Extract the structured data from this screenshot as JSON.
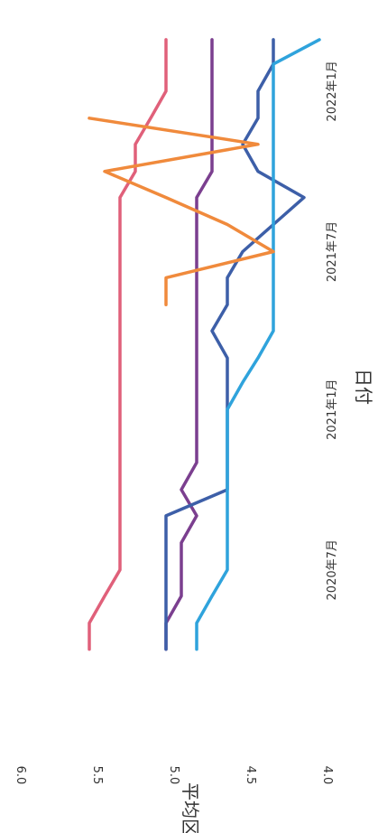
{
  "chart_data": {
    "type": "line",
    "xlabel": "日付",
    "ylabel": "平均区分",
    "x_ticks": [
      "2020年7月",
      "2021年1月",
      "2021年7月",
      "2022年1月"
    ],
    "y_ticks": [
      "4.0",
      "4.5",
      "5.0",
      "5.5",
      "6.0"
    ],
    "ylim": [
      4.0,
      6.0
    ],
    "xlim": [
      "2020-03-15",
      "2022-04-01"
    ],
    "grid": false,
    "legend": "none",
    "x": [
      "2020-04",
      "2020-05",
      "2020-06",
      "2020-07",
      "2020-08",
      "2020-09",
      "2020-10",
      "2020-11",
      "2020-12",
      "2021-01",
      "2021-02",
      "2021-03",
      "2021-04",
      "2021-05",
      "2021-06",
      "2021-07",
      "2021-08",
      "2021-09",
      "2021-10",
      "2021-11",
      "2021-12",
      "2022-01",
      "2022-02",
      "2022-03"
    ],
    "series": [
      {
        "color": "#e0607a",
        "values": [
          5.5,
          5.5,
          5.4,
          5.3,
          5.3,
          5.3,
          5.3,
          5.3,
          5.3,
          5.3,
          5.3,
          5.3,
          5.3,
          5.3,
          5.3,
          5.3,
          5.3,
          5.3,
          5.2,
          5.2,
          5.1,
          5.0,
          5.0,
          5.0
        ]
      },
      {
        "color": "#7b3f8f",
        "values": [
          5.0,
          5.0,
          4.9,
          4.9,
          4.9,
          4.8,
          4.9,
          4.8,
          4.8,
          4.8,
          4.8,
          4.8,
          4.8,
          4.8,
          4.8,
          4.8,
          4.8,
          4.8,
          4.7,
          4.7,
          4.7,
          4.7,
          4.7,
          4.7
        ]
      },
      {
        "color": "#3d5fa8",
        "values": [
          5.0,
          5.0,
          5.0,
          5.0,
          5.0,
          5.0,
          4.6,
          4.6,
          4.6,
          4.6,
          4.6,
          4.6,
          4.7,
          4.6,
          4.6,
          4.5,
          4.3,
          4.1,
          4.4,
          4.5,
          4.4,
          4.4,
          4.3,
          4.3
        ]
      },
      {
        "color": "#2fa3dc",
        "values": [
          4.8,
          4.8,
          4.7,
          4.6,
          4.6,
          4.6,
          4.6,
          4.6,
          4.6,
          4.6,
          4.5,
          4.4,
          4.3,
          4.3,
          4.3,
          4.3,
          4.3,
          4.3,
          4.3,
          4.3,
          4.3,
          4.3,
          4.3,
          4.0
        ]
      },
      {
        "color": "#f08a3c",
        "values": [
          null,
          null,
          null,
          null,
          null,
          null,
          null,
          null,
          null,
          null,
          null,
          null,
          null,
          5.0,
          5.0,
          4.3,
          4.6,
          5.0,
          5.4,
          4.4,
          5.5,
          null,
          null,
          null
        ]
      }
    ]
  }
}
